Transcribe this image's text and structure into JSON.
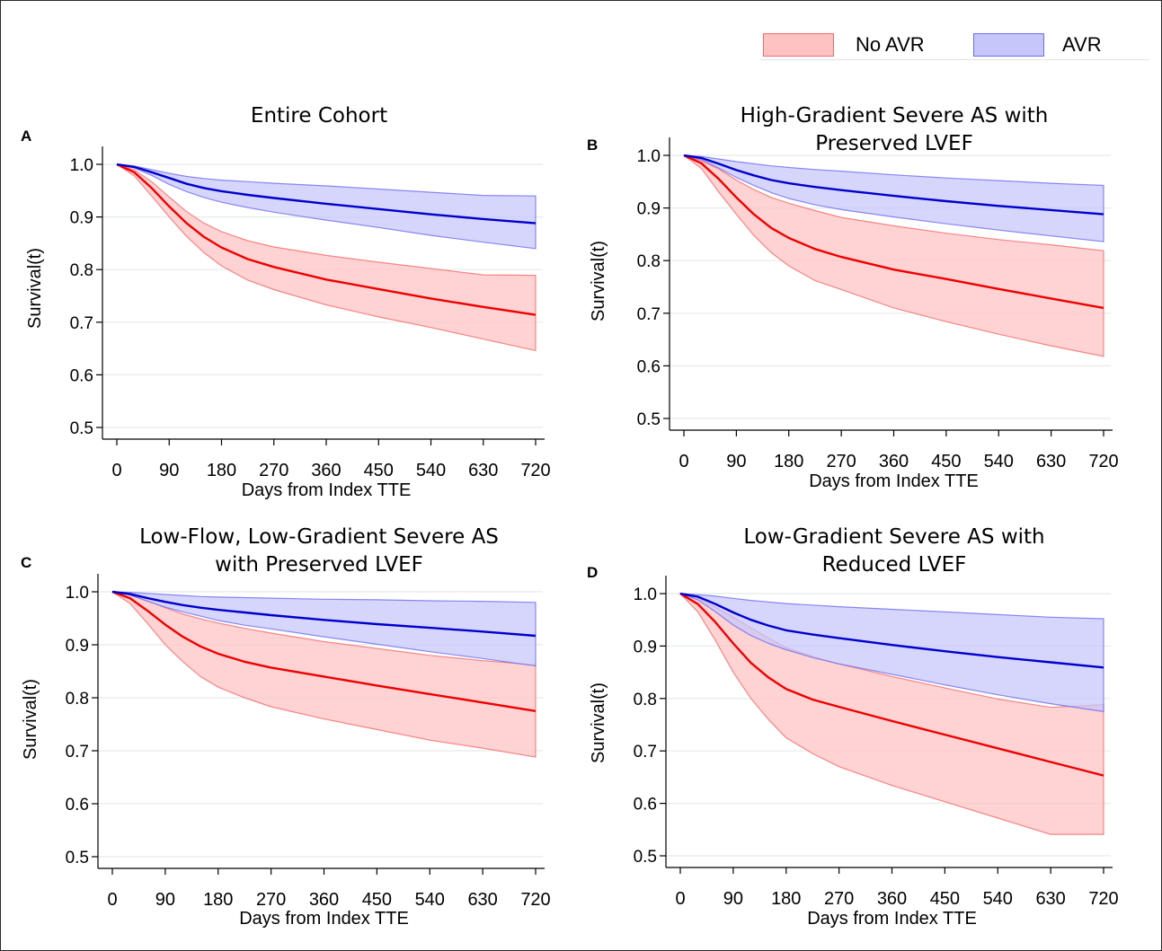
{
  "legend": {
    "no_avr_label": "No AVR",
    "avr_label": "AVR",
    "no_avr_fill": "#ffc2c2",
    "no_avr_edge": "#f26b6b",
    "avr_fill": "#c6c6fb",
    "avr_edge": "#6d6df0"
  },
  "colors": {
    "no_avr_line": "#ee0000",
    "avr_line": "#0000cc",
    "grid": "#e4ece8"
  },
  "panels": [
    {
      "letter": "A",
      "title": "Entire Cohort"
    },
    {
      "letter": "B",
      "title": "High-Gradient Severe AS with\nPreserved LVEF"
    },
    {
      "letter": "C",
      "title": "Low-Flow, Low-Gradient Severe AS\nwith Preserved LVEF"
    },
    {
      "letter": "D",
      "title": "Low-Gradient Severe AS with\nReduced LVEF"
    }
  ],
  "chart_data": [
    {
      "type": "area",
      "panel": "A",
      "title": "Entire Cohort",
      "xlabel": "Days from Index TTE",
      "ylabel": "Survival(t)",
      "xticks": [
        0,
        90,
        180,
        270,
        360,
        450,
        540,
        630,
        720
      ],
      "yticks": [
        0.5,
        0.6,
        0.7,
        0.8,
        0.9,
        1.0
      ],
      "xlim": [
        0,
        720
      ],
      "ylim": [
        0.5,
        1.0
      ],
      "grid": true,
      "legend_position": "top-right",
      "series": [
        {
          "name": "No AVR",
          "x": [
            0,
            30,
            60,
            90,
            120,
            150,
            180,
            225,
            270,
            360,
            450,
            540,
            630,
            720
          ],
          "y": [
            1.0,
            0.985,
            0.955,
            0.92,
            0.888,
            0.862,
            0.842,
            0.82,
            0.805,
            0.781,
            0.763,
            0.745,
            0.729,
            0.714
          ],
          "lower": [
            1.0,
            0.978,
            0.94,
            0.9,
            0.863,
            0.832,
            0.807,
            0.78,
            0.762,
            0.733,
            0.71,
            0.69,
            0.668,
            0.646
          ],
          "upper": [
            1.0,
            0.99,
            0.967,
            0.938,
            0.91,
            0.888,
            0.872,
            0.855,
            0.843,
            0.827,
            0.814,
            0.802,
            0.79,
            0.789
          ]
        },
        {
          "name": "AVR",
          "x": [
            0,
            30,
            60,
            90,
            120,
            150,
            180,
            225,
            270,
            360,
            450,
            540,
            630,
            720
          ],
          "y": [
            1.0,
            0.995,
            0.985,
            0.974,
            0.963,
            0.955,
            0.949,
            0.942,
            0.936,
            0.925,
            0.915,
            0.905,
            0.896,
            0.888
          ],
          "lower": [
            1.0,
            0.993,
            0.979,
            0.962,
            0.948,
            0.937,
            0.928,
            0.918,
            0.909,
            0.894,
            0.88,
            0.865,
            0.852,
            0.84
          ],
          "upper": [
            1.0,
            0.997,
            0.99,
            0.983,
            0.977,
            0.973,
            0.97,
            0.967,
            0.964,
            0.959,
            0.953,
            0.947,
            0.941,
            0.94
          ]
        }
      ]
    },
    {
      "type": "area",
      "panel": "B",
      "title": "High-Gradient Severe AS with Preserved LVEF",
      "xlabel": "Days from Index TTE",
      "ylabel": "Survival(t)",
      "xticks": [
        0,
        90,
        180,
        270,
        360,
        450,
        540,
        630,
        720
      ],
      "yticks": [
        0.5,
        0.6,
        0.7,
        0.8,
        0.9,
        1.0
      ],
      "xlim": [
        0,
        720
      ],
      "ylim": [
        0.5,
        1.0
      ],
      "grid": true,
      "series": [
        {
          "name": "No AVR",
          "x": [
            0,
            30,
            60,
            90,
            120,
            150,
            180,
            225,
            270,
            360,
            450,
            540,
            630,
            720
          ],
          "y": [
            1.0,
            0.985,
            0.955,
            0.92,
            0.888,
            0.862,
            0.843,
            0.822,
            0.807,
            0.783,
            0.765,
            0.746,
            0.728,
            0.71
          ],
          "lower": [
            1.0,
            0.975,
            0.93,
            0.888,
            0.848,
            0.815,
            0.79,
            0.762,
            0.745,
            0.71,
            0.684,
            0.66,
            0.638,
            0.618
          ],
          "upper": [
            1.0,
            0.99,
            0.974,
            0.953,
            0.935,
            0.92,
            0.909,
            0.895,
            0.882,
            0.866,
            0.852,
            0.84,
            0.83,
            0.819
          ]
        },
        {
          "name": "AVR",
          "x": [
            0,
            30,
            60,
            90,
            120,
            150,
            180,
            225,
            270,
            360,
            450,
            540,
            630,
            720
          ],
          "y": [
            1.0,
            0.995,
            0.984,
            0.972,
            0.962,
            0.953,
            0.947,
            0.94,
            0.934,
            0.923,
            0.913,
            0.904,
            0.896,
            0.888
          ],
          "lower": [
            1.0,
            0.992,
            0.976,
            0.958,
            0.943,
            0.929,
            0.918,
            0.906,
            0.897,
            0.883,
            0.87,
            0.858,
            0.847,
            0.836
          ],
          "upper": [
            1.0,
            0.998,
            0.993,
            0.988,
            0.984,
            0.98,
            0.977,
            0.973,
            0.97,
            0.963,
            0.957,
            0.952,
            0.947,
            0.943
          ]
        }
      ]
    },
    {
      "type": "area",
      "panel": "C",
      "title": "Low-Flow, Low-Gradient Severe AS with Preserved LVEF",
      "xlabel": "Days from Index TTE",
      "ylabel": "Survival(t)",
      "xticks": [
        0,
        90,
        180,
        270,
        360,
        450,
        540,
        630,
        720
      ],
      "yticks": [
        0.5,
        0.6,
        0.7,
        0.8,
        0.9,
        1.0
      ],
      "xlim": [
        0,
        720
      ],
      "ylim": [
        0.5,
        1.0
      ],
      "grid": true,
      "series": [
        {
          "name": "No AVR",
          "x": [
            0,
            30,
            60,
            90,
            120,
            150,
            180,
            225,
            270,
            360,
            450,
            540,
            630,
            720
          ],
          "y": [
            1.0,
            0.988,
            0.964,
            0.938,
            0.915,
            0.897,
            0.883,
            0.868,
            0.857,
            0.84,
            0.823,
            0.807,
            0.791,
            0.775
          ],
          "lower": [
            1.0,
            0.978,
            0.94,
            0.9,
            0.868,
            0.84,
            0.82,
            0.8,
            0.783,
            0.76,
            0.74,
            0.72,
            0.705,
            0.688
          ],
          "upper": [
            1.0,
            0.994,
            0.983,
            0.97,
            0.958,
            0.949,
            0.941,
            0.931,
            0.922,
            0.906,
            0.893,
            0.88,
            0.87,
            0.862
          ]
        },
        {
          "name": "AVR",
          "x": [
            0,
            30,
            60,
            90,
            120,
            150,
            180,
            225,
            270,
            360,
            450,
            540,
            630,
            720
          ],
          "y": [
            1.0,
            0.996,
            0.988,
            0.981,
            0.975,
            0.97,
            0.966,
            0.961,
            0.956,
            0.947,
            0.939,
            0.932,
            0.925,
            0.917
          ],
          "lower": [
            1.0,
            0.994,
            0.982,
            0.971,
            0.962,
            0.954,
            0.946,
            0.937,
            0.93,
            0.915,
            0.901,
            0.887,
            0.874,
            0.86
          ],
          "upper": [
            1.0,
            0.999,
            0.997,
            0.995,
            0.993,
            0.991,
            0.99,
            0.989,
            0.988,
            0.986,
            0.985,
            0.983,
            0.982,
            0.98
          ]
        }
      ]
    },
    {
      "type": "area",
      "panel": "D",
      "title": "Low-Gradient Severe AS with Reduced LVEF",
      "xlabel": "Days from Index TTE",
      "ylabel": "Survival(t)",
      "xticks": [
        0,
        90,
        180,
        270,
        360,
        450,
        540,
        630,
        720
      ],
      "yticks": [
        0.5,
        0.6,
        0.7,
        0.8,
        0.9,
        1.0
      ],
      "xlim": [
        0,
        720
      ],
      "ylim": [
        0.5,
        1.0
      ],
      "grid": true,
      "series": [
        {
          "name": "No AVR",
          "x": [
            0,
            30,
            60,
            90,
            120,
            150,
            180,
            225,
            270,
            360,
            450,
            540,
            630,
            720
          ],
          "y": [
            1.0,
            0.98,
            0.945,
            0.905,
            0.868,
            0.84,
            0.818,
            0.798,
            0.784,
            0.757,
            0.731,
            0.705,
            0.679,
            0.653
          ],
          "lower": [
            1.0,
            0.965,
            0.91,
            0.85,
            0.8,
            0.76,
            0.725,
            0.695,
            0.67,
            0.634,
            0.603,
            0.572,
            0.541,
            0.541
          ],
          "upper": [
            1.0,
            0.99,
            0.974,
            0.955,
            0.935,
            0.915,
            0.897,
            0.88,
            0.866,
            0.842,
            0.82,
            0.799,
            0.783,
            0.788
          ]
        },
        {
          "name": "AVR",
          "x": [
            0,
            30,
            60,
            90,
            120,
            150,
            180,
            225,
            270,
            360,
            450,
            540,
            630,
            720
          ],
          "y": [
            1.0,
            0.994,
            0.98,
            0.964,
            0.95,
            0.939,
            0.93,
            0.922,
            0.915,
            0.902,
            0.89,
            0.879,
            0.869,
            0.859
          ],
          "lower": [
            1.0,
            0.988,
            0.965,
            0.94,
            0.92,
            0.905,
            0.893,
            0.878,
            0.866,
            0.846,
            0.826,
            0.807,
            0.79,
            0.775
          ],
          "upper": [
            1.0,
            0.998,
            0.995,
            0.991,
            0.987,
            0.984,
            0.981,
            0.978,
            0.975,
            0.97,
            0.965,
            0.96,
            0.955,
            0.952
          ]
        }
      ]
    }
  ]
}
